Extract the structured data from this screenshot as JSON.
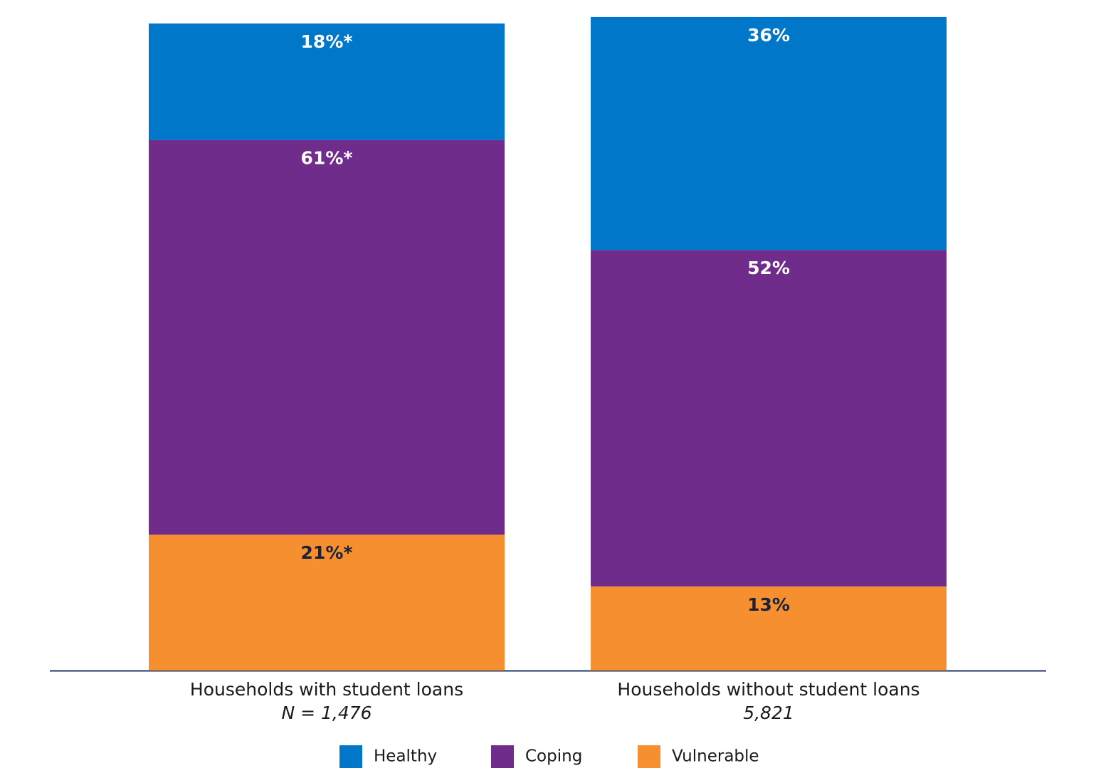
{
  "chart_data": {
    "type": "stacked_bar",
    "categories": [
      "Households with student loans",
      "Households without student loans"
    ],
    "category_notes": [
      "N = 1,476",
      "5,821"
    ],
    "series": [
      {
        "name": "Healthy",
        "color": "#0077c8",
        "label_color": "#ffffff",
        "values": [
          18,
          36
        ],
        "value_labels": [
          "18%*",
          "36%"
        ]
      },
      {
        "name": "Coping",
        "color": "#6f2c8a",
        "label_color": "#ffffff",
        "values": [
          61,
          52
        ],
        "value_labels": [
          "61%*",
          "52%"
        ]
      },
      {
        "name": "Vulnerable",
        "color": "#f58f2f",
        "label_color": "#1c2237",
        "values": [
          21,
          13
        ],
        "value_labels": [
          "21%*",
          "13%"
        ]
      }
    ],
    "ylim": [
      0,
      100
    ],
    "stack_order": "bottom-up-reversed"
  }
}
